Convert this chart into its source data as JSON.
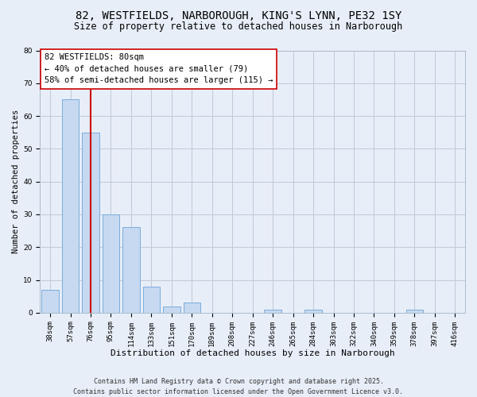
{
  "title": "82, WESTFIELDS, NARBOROUGH, KING'S LYNN, PE32 1SY",
  "subtitle": "Size of property relative to detached houses in Narborough",
  "xlabel": "Distribution of detached houses by size in Narborough",
  "ylabel": "Number of detached properties",
  "bar_labels": [
    "38sqm",
    "57sqm",
    "76sqm",
    "95sqm",
    "114sqm",
    "133sqm",
    "151sqm",
    "170sqm",
    "189sqm",
    "208sqm",
    "227sqm",
    "246sqm",
    "265sqm",
    "284sqm",
    "303sqm",
    "322sqm",
    "340sqm",
    "359sqm",
    "378sqm",
    "397sqm",
    "416sqm"
  ],
  "bar_values": [
    7,
    65,
    55,
    30,
    26,
    8,
    2,
    3,
    0,
    0,
    0,
    1,
    0,
    1,
    0,
    0,
    0,
    0,
    1,
    0,
    0
  ],
  "bar_color": "#c6d9f0",
  "bar_edge_color": "#7aaddb",
  "vline_index": 2,
  "vline_color": "#cc0000",
  "ylim": [
    0,
    80
  ],
  "yticks": [
    0,
    10,
    20,
    30,
    40,
    50,
    60,
    70,
    80
  ],
  "annotation_box_text": "82 WESTFIELDS: 80sqm\n← 40% of detached houses are smaller (79)\n58% of semi-detached houses are larger (115) →",
  "grid_color": "#c0c8d8",
  "bg_color": "#e8eef8",
  "footer_line1": "Contains HM Land Registry data © Crown copyright and database right 2025.",
  "footer_line2": "Contains public sector information licensed under the Open Government Licence v3.0.",
  "title_fontsize": 10,
  "subtitle_fontsize": 8.5,
  "xlabel_fontsize": 8,
  "ylabel_fontsize": 7.5,
  "tick_fontsize": 6.5,
  "annotation_fontsize": 7.5,
  "footer_fontsize": 6
}
